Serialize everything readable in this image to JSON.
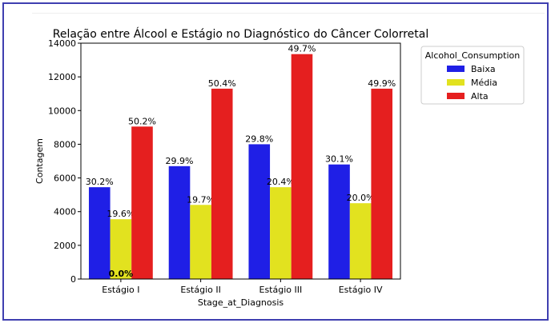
{
  "chart_data": {
    "type": "bar",
    "title": "Relação entre Álcool e Estágio no Diagnóstico do Câncer Colorretal",
    "xlabel": "Stage_at_Diagnosis",
    "ylabel": "Contagem",
    "ylim": [
      0,
      14000
    ],
    "yticks": [
      "0",
      "2000",
      "4000",
      "6000",
      "8000",
      "10000",
      "12000",
      "14000"
    ],
    "categories": [
      "Estágio I",
      "Estágio II",
      "Estágio III",
      "Estágio IV"
    ],
    "legend": {
      "title": "Alcohol_Consumption",
      "placement": "outside-right"
    },
    "series": [
      {
        "name": "Baixa",
        "color": "#1f1fe6",
        "values": [
          5450,
          6700,
          8000,
          6800
        ],
        "labels": [
          "30.2%",
          "29.9%",
          "29.8%",
          "30.1%"
        ]
      },
      {
        "name": "Média",
        "color": "#e2e21f",
        "values": [
          3550,
          4400,
          5450,
          4500
        ],
        "labels": [
          "19.6%",
          "19.7%",
          "20.4%",
          "20.0%"
        ]
      },
      {
        "name": "Alta",
        "color": "#e51f1f",
        "values": [
          9050,
          11300,
          13350,
          11300
        ],
        "labels": [
          "50.2%",
          "50.4%",
          "49.7%",
          "49.9%"
        ]
      }
    ],
    "extra_labels": [
      {
        "category": "Estágio I",
        "text": "0.0%",
        "value": 0
      }
    ],
    "grid": false
  }
}
